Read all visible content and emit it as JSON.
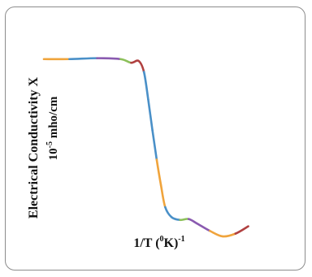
{
  "chart_data": {
    "type": "line",
    "title": "",
    "xlabel_main": "1/T (",
    "xlabel_sup1": "0",
    "xlabel_mid": "K)",
    "xlabel_sup2": "-1",
    "ylabel_line1": "Electrical Conductivity X",
    "ylabel_line2_base": "10",
    "ylabel_line2_sup": "-5",
    "ylabel_line2_rest": " mho/cm",
    "axes_visible": false,
    "grid": false,
    "legend": "none",
    "xlim": [
      0,
      100
    ],
    "ylim": [
      0,
      100
    ],
    "series_colors": [
      "#f0a43c",
      "#4a90c8",
      "#8a5ab0",
      "#8cc05a",
      "#b04040"
    ],
    "points": [
      {
        "x": 0,
        "y": 97,
        "c": 0
      },
      {
        "x": 12,
        "y": 97,
        "c": 1
      },
      {
        "x": 25,
        "y": 97.5,
        "c": 2
      },
      {
        "x": 36,
        "y": 97,
        "c": 3
      },
      {
        "x": 41,
        "y": 95,
        "c": 4
      },
      {
        "x": 44.5,
        "y": 96,
        "c": 4
      },
      {
        "x": 47,
        "y": 90,
        "c": 1
      },
      {
        "x": 49,
        "y": 75,
        "c": 1
      },
      {
        "x": 51,
        "y": 58,
        "c": 1
      },
      {
        "x": 53,
        "y": 42,
        "c": 0
      },
      {
        "x": 55,
        "y": 28,
        "c": 0
      },
      {
        "x": 57,
        "y": 16,
        "c": 1
      },
      {
        "x": 60,
        "y": 10.5,
        "c": 1
      },
      {
        "x": 64,
        "y": 9,
        "c": 3
      },
      {
        "x": 68,
        "y": 9.5,
        "c": 2
      },
      {
        "x": 72,
        "y": 7,
        "c": 2
      },
      {
        "x": 78,
        "y": 3,
        "c": 0
      },
      {
        "x": 84,
        "y": 0,
        "c": 0
      },
      {
        "x": 90,
        "y": 1.5,
        "c": 4
      },
      {
        "x": 96,
        "y": 5.5,
        "c": 4
      }
    ]
  }
}
